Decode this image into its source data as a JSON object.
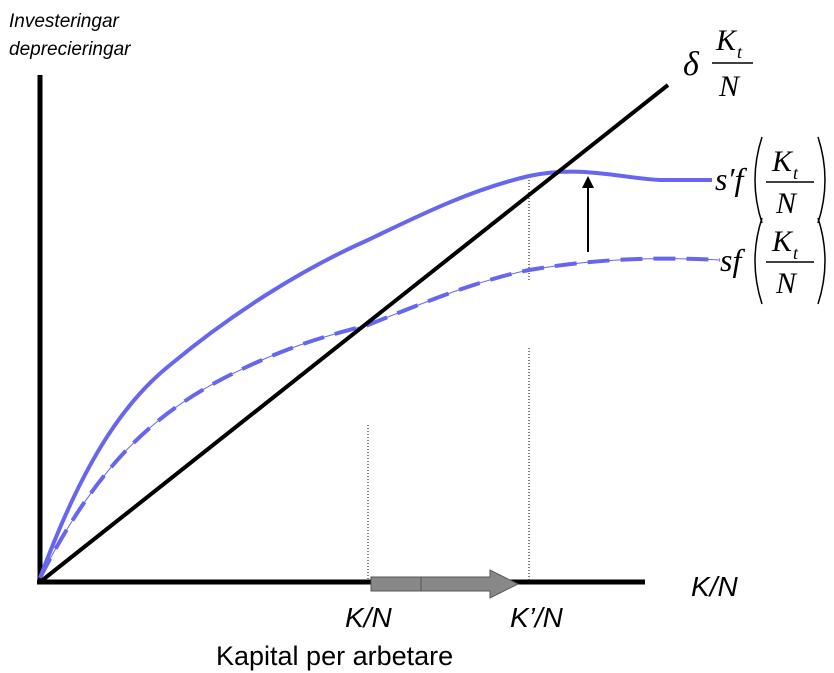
{
  "y_axis_label": {
    "line1": "Investeringar",
    "line2": "deprecieringar"
  },
  "x_axis_symbol": "K/N",
  "x_axis_title": "Kapital per arbetare",
  "tick_labels": {
    "initial": "K/N",
    "new": "K’/N"
  },
  "curve_labels": {
    "depreciation": {
      "coef": "δ",
      "num": "K",
      "sub": "t",
      "den": "N"
    },
    "new_savings": {
      "prefix": "s′f",
      "num": "K",
      "sub": "t",
      "den": "N"
    },
    "old_savings": {
      "prefix": "sf",
      "num": "K",
      "sub": "t",
      "den": "N"
    }
  },
  "colors": {
    "axis": "#000000",
    "curve": "#6666ee",
    "arrow_fill": "#888888"
  },
  "icons": {
    "shift_arrow": "up-arrow-icon",
    "capital_arrow": "right-arrow-icon"
  }
}
